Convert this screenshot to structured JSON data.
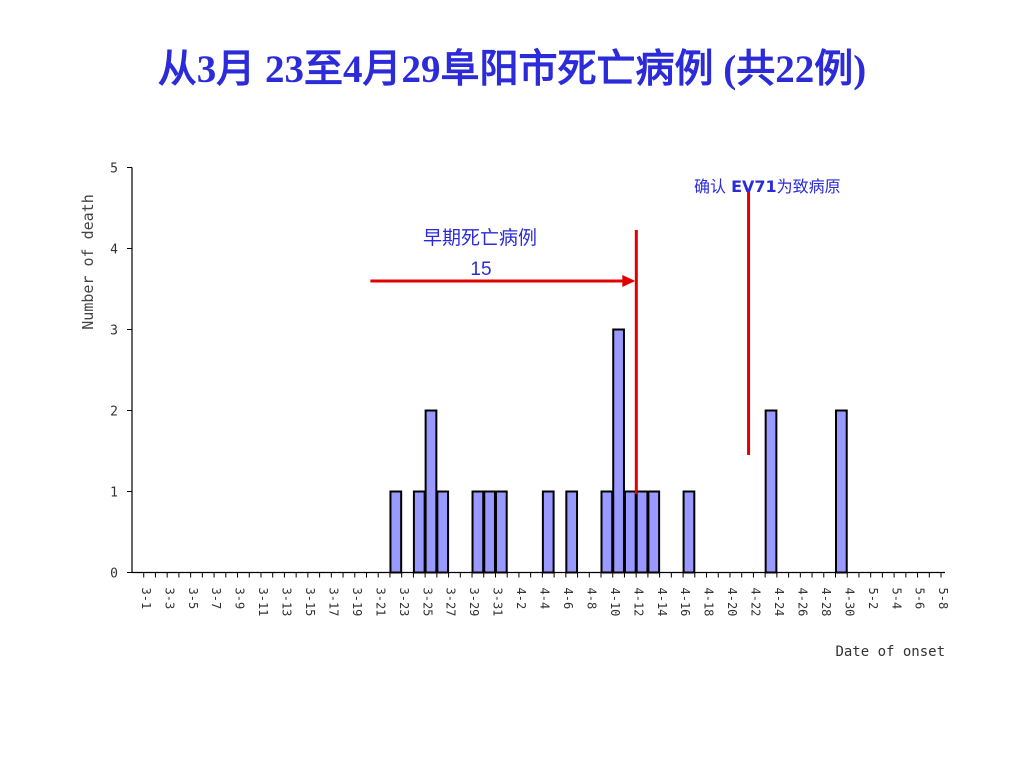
{
  "slide": {
    "title": "从3月 23至4月29阜阳市死亡病例 (共22例)",
    "title_color": "#2b2bd9"
  },
  "chart_data": {
    "type": "bar",
    "ylabel": "Number of death",
    "xlabel": "Date of onset",
    "ylim": [
      0,
      5
    ],
    "yticks": [
      0,
      1,
      2,
      3,
      4,
      5
    ],
    "grid": false,
    "bar_color": "#9999ff",
    "bar_edge_color": "#000000",
    "categories": [
      "3-1",
      "3-2",
      "3-3",
      "3-4",
      "3-5",
      "3-6",
      "3-7",
      "3-8",
      "3-9",
      "3-10",
      "3-11",
      "3-12",
      "3-13",
      "3-14",
      "3-15",
      "3-16",
      "3-17",
      "3-18",
      "3-19",
      "3-20",
      "3-21",
      "3-22",
      "3-23",
      "3-24",
      "3-25",
      "3-26",
      "3-27",
      "3-28",
      "3-29",
      "3-30",
      "3-31",
      "4-1",
      "4-2",
      "4-3",
      "4-4",
      "4-5",
      "4-6",
      "4-7",
      "4-8",
      "4-9",
      "4-10",
      "4-11",
      "4-12",
      "4-13",
      "4-14",
      "4-15",
      "4-16",
      "4-17",
      "4-18",
      "4-19",
      "4-20",
      "4-21",
      "4-22",
      "4-23",
      "4-24",
      "4-25",
      "4-26",
      "4-27",
      "4-28",
      "4-29",
      "4-30",
      "5-1",
      "5-2",
      "5-3",
      "5-4",
      "5-5",
      "5-6",
      "5-7",
      "5-8"
    ],
    "tick_labels": [
      "3-1",
      "3-3",
      "3-5",
      "3-7",
      "3-9",
      "3-11",
      "3-13",
      "3-15",
      "3-17",
      "3-19",
      "3-21",
      "3-23",
      "3-25",
      "3-27",
      "3-29",
      "3-31",
      "4-2",
      "4-4",
      "4-6",
      "4-8",
      "4-10",
      "4-12",
      "4-14",
      "4-16",
      "4-18",
      "4-20",
      "4-22",
      "4-24",
      "4-26",
      "4-28",
      "4-30",
      "5-2",
      "5-4",
      "5-6",
      "5-8"
    ],
    "values": [
      0,
      0,
      0,
      0,
      0,
      0,
      0,
      0,
      0,
      0,
      0,
      0,
      0,
      0,
      0,
      0,
      0,
      0,
      0,
      0,
      0,
      0,
      1,
      0,
      1,
      2,
      1,
      0,
      0,
      1,
      1,
      1,
      0,
      0,
      0,
      1,
      0,
      1,
      0,
      0,
      1,
      3,
      1,
      1,
      1,
      0,
      0,
      1,
      0,
      0,
      0,
      0,
      0,
      0,
      2,
      0,
      0,
      0,
      0,
      0,
      2,
      0,
      0,
      0,
      0,
      0,
      0,
      0,
      0
    ],
    "annotations": [
      {
        "id": "early",
        "label": "早期死亡病例",
        "count_label": "15",
        "color": "#e00000",
        "line_at": "4-12",
        "arrow_from": "3-21"
      },
      {
        "id": "ev71",
        "label_pre": "确认 ",
        "label_bold": "EV71",
        "label_post": "为致病原",
        "color": "#e00000",
        "line_at": "4-22"
      }
    ]
  }
}
